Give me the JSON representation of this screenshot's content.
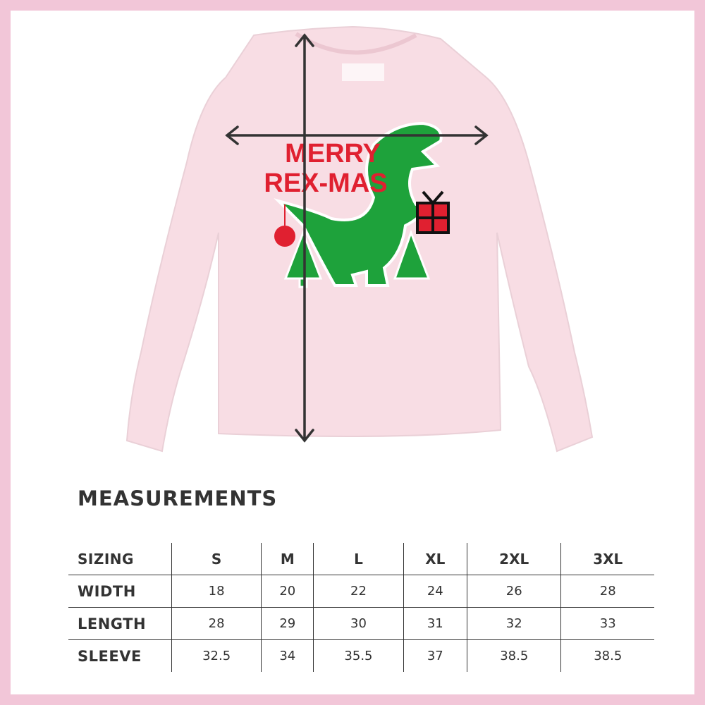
{
  "design": {
    "line1": "MERRY",
    "line2": "REX-MAS"
  },
  "title": "MEASUREMENTS",
  "table": {
    "header": [
      "SIZING",
      "S",
      "M",
      "L",
      "XL",
      "2XL",
      "3XL"
    ],
    "rows": [
      [
        "WIDTH",
        "18",
        "20",
        "22",
        "24",
        "26",
        "28"
      ],
      [
        "LENGTH",
        "28",
        "29",
        "30",
        "31",
        "32",
        "33"
      ],
      [
        "SLEEVE",
        "32.5",
        "34",
        "35.5",
        "37",
        "38.5",
        "38.5"
      ]
    ]
  }
}
